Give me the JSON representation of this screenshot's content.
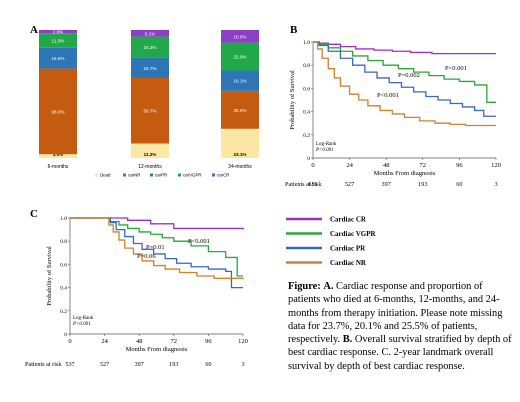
{
  "panels": {
    "a": "A",
    "b": "B",
    "c": "C"
  },
  "chart_data": [
    {
      "type": "bar",
      "stacked": true,
      "categories": [
        "6-months",
        "12-months",
        "24-months"
      ],
      "ylim": [
        0,
        100
      ],
      "series": [
        {
          "name": "Dead",
          "color": "#fce8a4",
          "values": [
            3.0,
            11.2,
            23.1
          ],
          "labels": [
            "3.0%",
            "11.2%",
            "23.1%"
          ]
        },
        {
          "name": "carNR",
          "color": "#c55a11",
          "values": [
            68.0,
            50.7,
            30.0
          ],
          "labels": [
            "68.0%",
            "50.7%",
            "30.0%"
          ]
        },
        {
          "name": "carPR",
          "color": "#2e75b6",
          "values": [
            16.5,
            15.7,
            16.1
          ],
          "labels": [
            "16.5%",
            "15.7%",
            "16.1%"
          ]
        },
        {
          "name": "carVGPR",
          "color": "#21a84a",
          "values": [
            11.5,
            16.3,
            22.0
          ],
          "labels": [
            "11.5%",
            "16.3%",
            "22.0%"
          ]
        },
        {
          "name": "carCR",
          "color": "#8c3fc2",
          "values": [
            2.6,
            5.1,
            10.0
          ],
          "labels": [
            "2.6%",
            "5.1%",
            "10.0%"
          ]
        }
      ]
    },
    {
      "type": "line",
      "step": true,
      "ylabel": "Probability of Survival",
      "xlabel": "Months From diagnosis",
      "xlim": [
        0,
        120
      ],
      "ylim": [
        0,
        1
      ],
      "xticks": [
        "0",
        "24",
        "48",
        "72",
        "96",
        "120"
      ],
      "yticks": [
        "0",
        "0.2",
        "0.4",
        "0.6",
        "0.8",
        "1.0"
      ],
      "annotations": [
        "P<0.001",
        "P=0.002",
        "P<0.001"
      ],
      "logrank": "Log-Rank",
      "logrank_p": "P<0.001",
      "at_risk_label": "Patients at risk",
      "at_risk": [
        "651",
        "527",
        "397",
        "193",
        "60",
        "3"
      ],
      "series": [
        {
          "name": "Cardiac CR",
          "color": "#9b30c8",
          "x": [
            0,
            4,
            10,
            18,
            28,
            40,
            52,
            64,
            78,
            120
          ],
          "y": [
            1.0,
            0.99,
            0.98,
            0.96,
            0.94,
            0.93,
            0.92,
            0.91,
            0.9,
            0.9
          ]
        },
        {
          "name": "Cardiac VGPR",
          "color": "#2aa838",
          "x": [
            0,
            4,
            10,
            18,
            26,
            36,
            46,
            56,
            66,
            76,
            86,
            96,
            106,
            114,
            120
          ],
          "y": [
            1.0,
            0.98,
            0.95,
            0.92,
            0.88,
            0.84,
            0.8,
            0.77,
            0.74,
            0.71,
            0.68,
            0.66,
            0.63,
            0.48,
            0.48
          ]
        },
        {
          "name": "Cardiac PR",
          "color": "#3a66c4",
          "x": [
            0,
            4,
            10,
            18,
            26,
            34,
            42,
            50,
            58,
            66,
            74,
            82,
            90,
            98,
            106,
            112,
            120
          ],
          "y": [
            1.0,
            0.97,
            0.92,
            0.86,
            0.8,
            0.74,
            0.69,
            0.65,
            0.61,
            0.57,
            0.53,
            0.5,
            0.47,
            0.44,
            0.41,
            0.36,
            0.36
          ]
        },
        {
          "name": "Cardiac NR",
          "color": "#d0812c",
          "x": [
            0,
            3,
            6,
            10,
            14,
            18,
            24,
            30,
            36,
            44,
            52,
            60,
            70,
            80,
            90,
            100,
            110,
            120
          ],
          "y": [
            1.0,
            0.94,
            0.86,
            0.77,
            0.69,
            0.62,
            0.55,
            0.5,
            0.45,
            0.41,
            0.38,
            0.35,
            0.32,
            0.3,
            0.29,
            0.28,
            0.28,
            0.28
          ]
        }
      ]
    },
    {
      "type": "line",
      "step": true,
      "ylabel": "Probability of Survival",
      "xlabel": "Months From diagnosis",
      "xlim": [
        0,
        120
      ],
      "ylim": [
        0,
        1
      ],
      "xticks": [
        "0",
        "24",
        "48",
        "72",
        "96",
        "120"
      ],
      "yticks": [
        "0",
        "0.2",
        "0.4",
        "0.6",
        "0.8",
        "1.0"
      ],
      "annotations": [
        "P<0.001",
        "P=0.01",
        "P=0.06"
      ],
      "logrank": "Log-Rank",
      "logrank_p": "P<0.001",
      "at_risk_label": "Patients at risk",
      "at_risk": [
        "537",
        "527",
        "397",
        "193",
        "60",
        "3"
      ],
      "series": [
        {
          "name": "Cardiac CR",
          "color": "#9b30c8",
          "x": [
            0,
            24,
            40,
            56,
            72,
            120
          ],
          "y": [
            1.0,
            1.0,
            0.98,
            0.95,
            0.91,
            0.9
          ]
        },
        {
          "name": "Cardiac VGPR",
          "color": "#2aa838",
          "x": [
            0,
            24,
            28,
            34,
            40,
            48,
            56,
            64,
            72,
            84,
            96,
            108,
            116,
            120
          ],
          "y": [
            1.0,
            1.0,
            0.97,
            0.94,
            0.91,
            0.88,
            0.86,
            0.83,
            0.8,
            0.76,
            0.71,
            0.66,
            0.5,
            0.5
          ]
        },
        {
          "name": "Cardiac PR",
          "color": "#3a66c4",
          "x": [
            0,
            24,
            28,
            32,
            38,
            44,
            50,
            58,
            66,
            74,
            84,
            96,
            108,
            112,
            120
          ],
          "y": [
            1.0,
            1.0,
            0.96,
            0.9,
            0.84,
            0.78,
            0.73,
            0.69,
            0.65,
            0.61,
            0.58,
            0.56,
            0.54,
            0.4,
            0.4
          ]
        },
        {
          "name": "Cardiac NR",
          "color": "#d0812c",
          "x": [
            0,
            24,
            27,
            30,
            34,
            38,
            44,
            50,
            58,
            66,
            76,
            88,
            100,
            120
          ],
          "y": [
            1.0,
            1.0,
            0.94,
            0.88,
            0.81,
            0.74,
            0.69,
            0.63,
            0.59,
            0.56,
            0.53,
            0.5,
            0.48,
            0.47
          ]
        }
      ]
    }
  ],
  "legend": {
    "items": [
      {
        "label": "Cardiac CR",
        "color": "#9b30c8"
      },
      {
        "label": "Cardiac VGPR",
        "color": "#2aa838"
      },
      {
        "label": "Cardiac PR",
        "color": "#3a66c4"
      },
      {
        "label": "Cardiac NR",
        "color": "#d0812c"
      }
    ]
  },
  "caption": {
    "fig_label": "Figure:",
    "a_label": "A.",
    "a_text": " Cardiac response and proportion of patients who died at 6-months, 12-months, and 24-months from therapy initiation. Please note missing data for 23.7%, 20.1% and 25.5% of patients, respectively. ",
    "b_label": "B.",
    "b_text": " Overall survival stratified by depth of best cardiac response. C. 2-year landmark overall survival by depth of best cardiac response."
  }
}
